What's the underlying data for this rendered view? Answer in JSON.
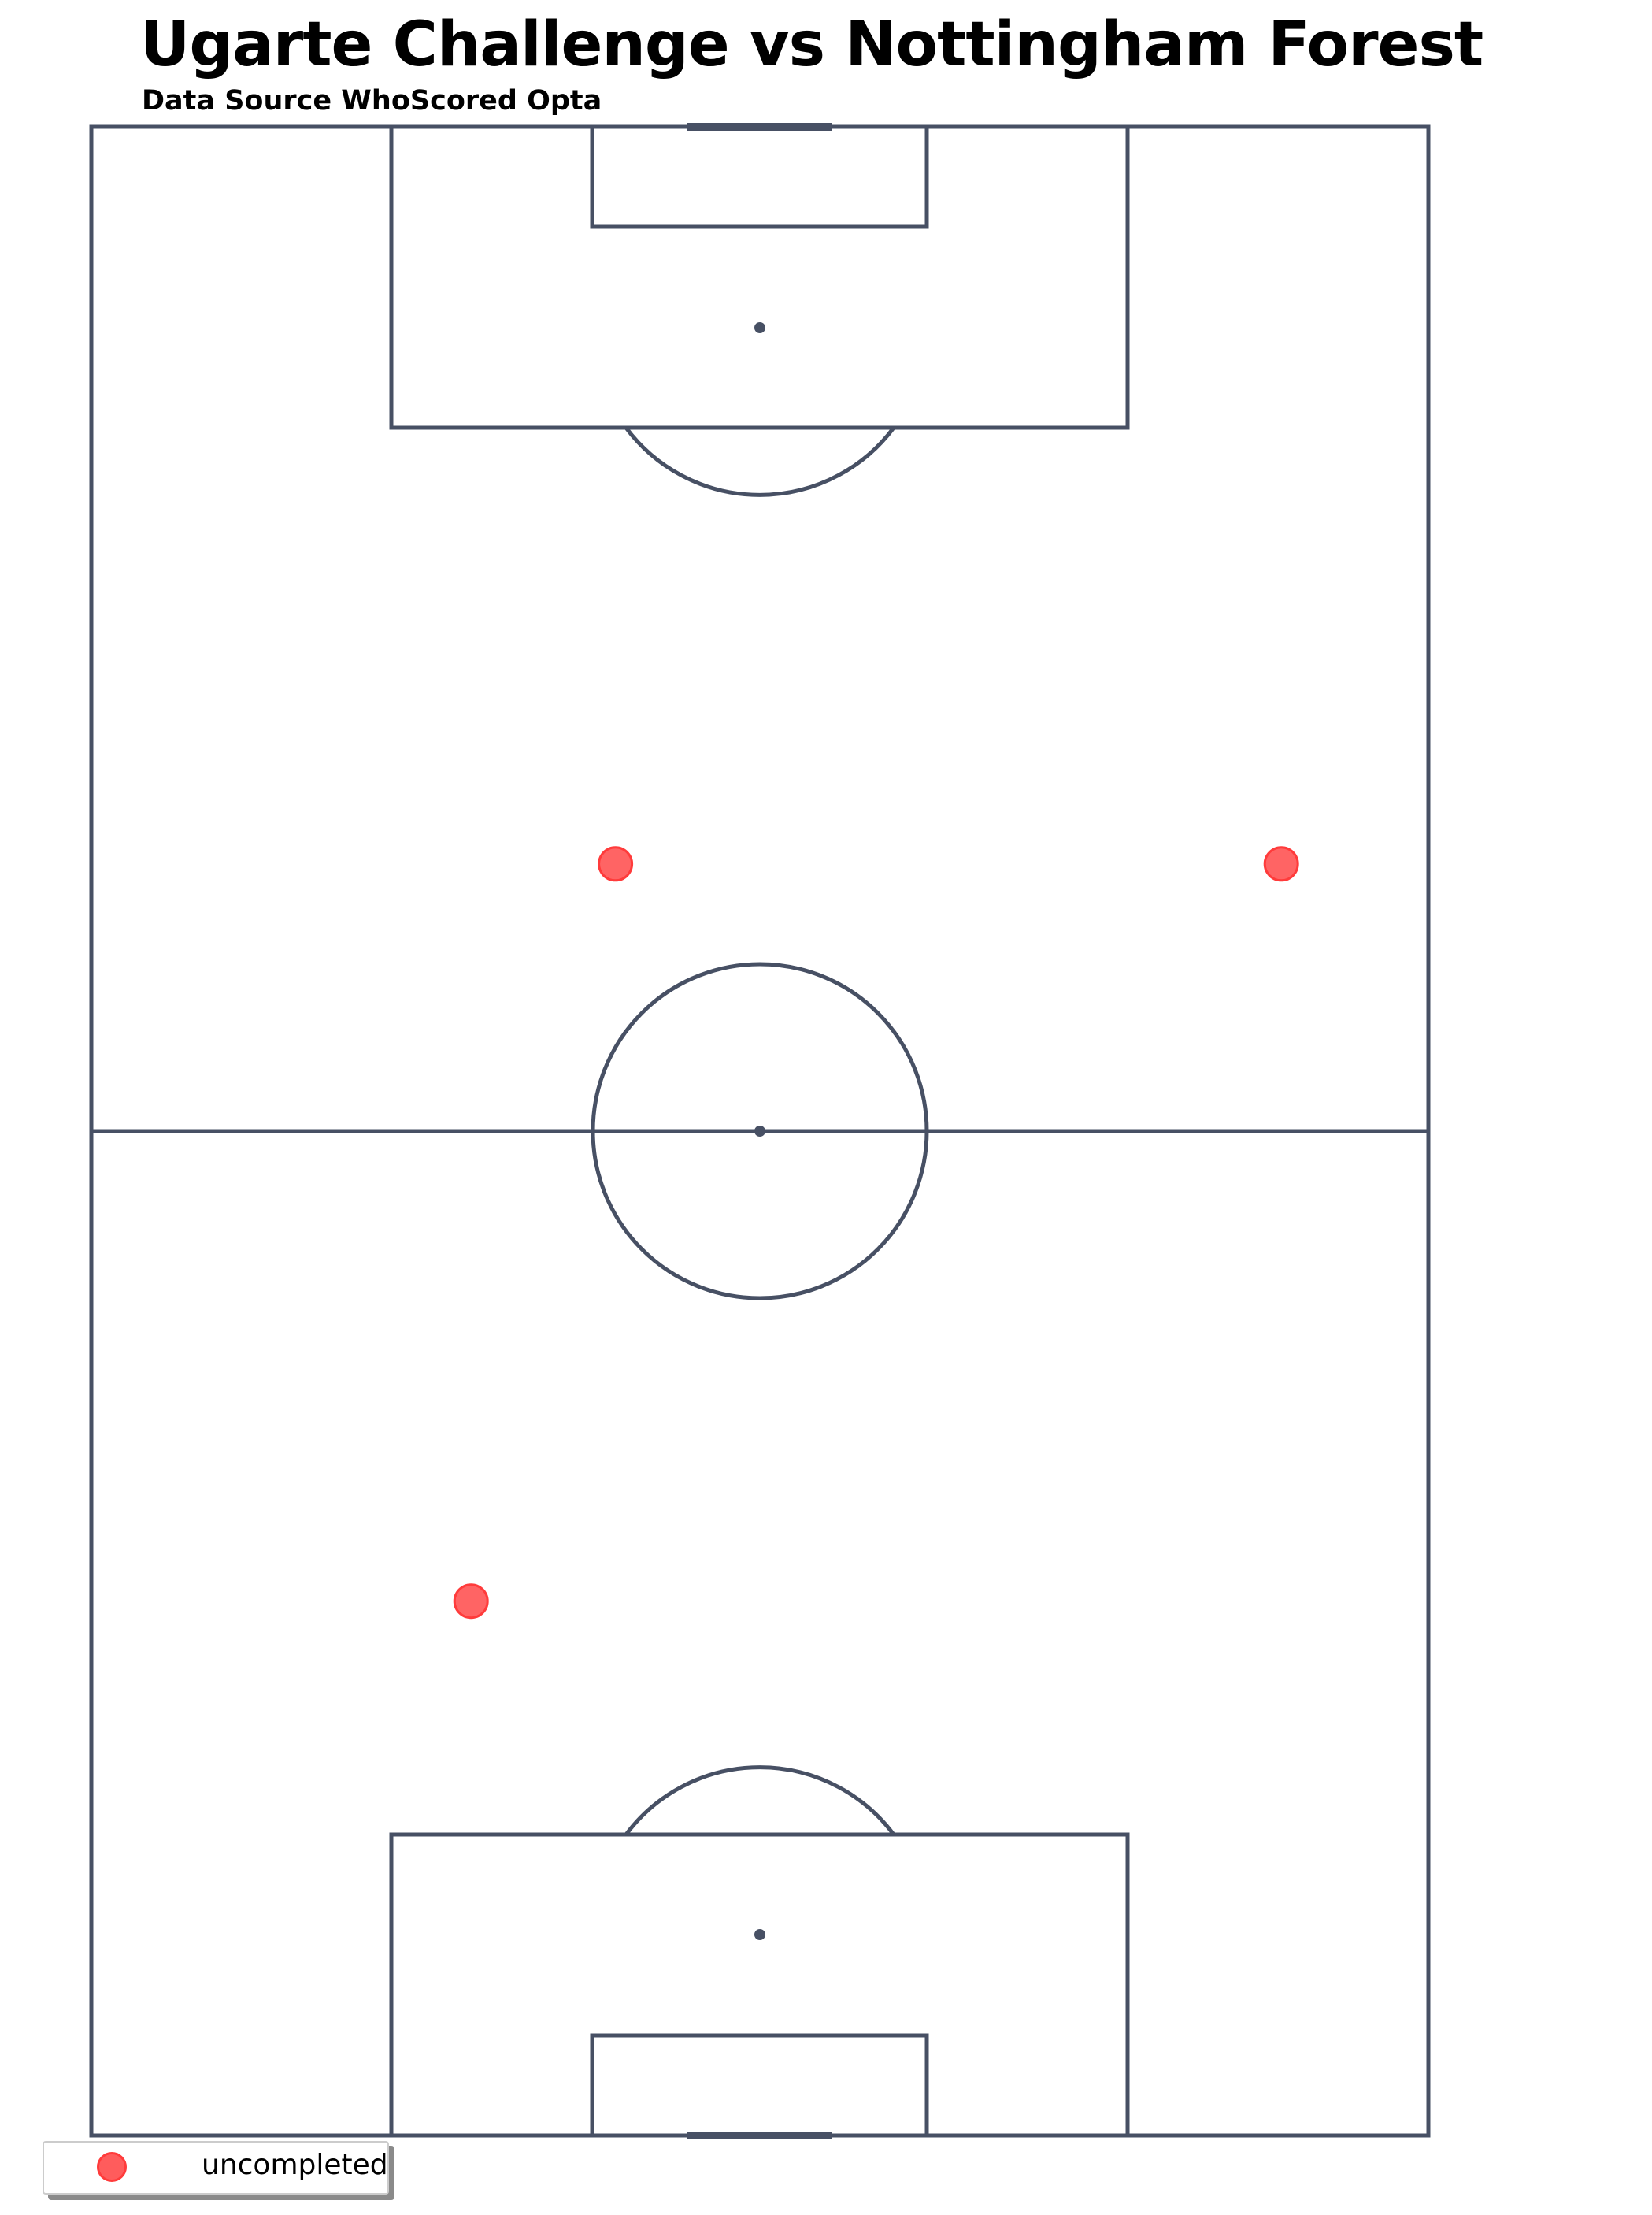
{
  "title": "Ugarte Challenge vs Nottingham Forest",
  "subtitle": "Data Source  WhoScored Opta",
  "colors": {
    "pitch_lines": "#475064",
    "uncompleted": "#ff3b3b",
    "uncompleted_fill": "#ff5c5c"
  },
  "chart_data": {
    "type": "scatter",
    "pitch": "vertical-football-pitch",
    "x_range": [
      0,
      100
    ],
    "y_range": [
      0,
      100
    ],
    "series": [
      {
        "name": "uncompleted",
        "points": [
          {
            "x": 39.2,
            "y": 63.3
          },
          {
            "x": 89.0,
            "y": 63.3
          },
          {
            "x": 28.4,
            "y": 26.6
          }
        ]
      }
    ],
    "legend": {
      "placement": "bottom-left",
      "entries": [
        "uncompleted"
      ]
    }
  }
}
